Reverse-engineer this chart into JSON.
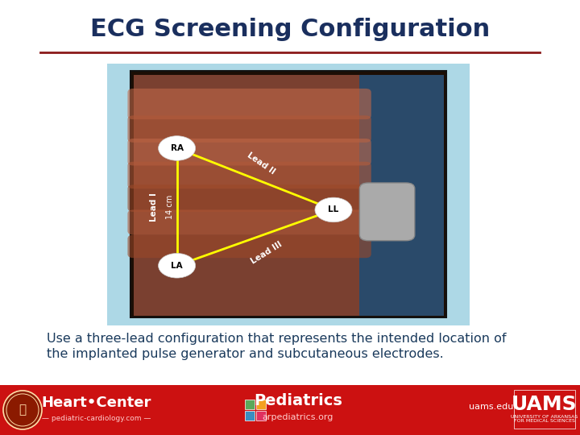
{
  "title": "ECG Screening Configuration",
  "title_color": "#1a2f5e",
  "title_fontsize": 22,
  "body_text_line1": "Use a three-lead configuration that represents the intended location of",
  "body_text_line2": "the implanted pulse generator and subcutaneous electrodes.",
  "body_text_color": "#1a3a5c",
  "body_fontsize": 11.5,
  "separator_color": "#8b1a1a",
  "footer_bg_color": "#cc1111",
  "bg_color": "#ffffff",
  "image_outer_bg": "#add8e6",
  "image_inner_bg": "#2a1a0a",
  "fig_width": 7.2,
  "fig_height": 5.4,
  "dpi": 100,
  "ra": [
    0.305,
    0.615
  ],
  "la": [
    0.305,
    0.31
  ],
  "ll": [
    0.575,
    0.455
  ],
  "lead_color": "#ffff00",
  "electrode_fill": "#ffffff",
  "electrode_text": "#000000"
}
